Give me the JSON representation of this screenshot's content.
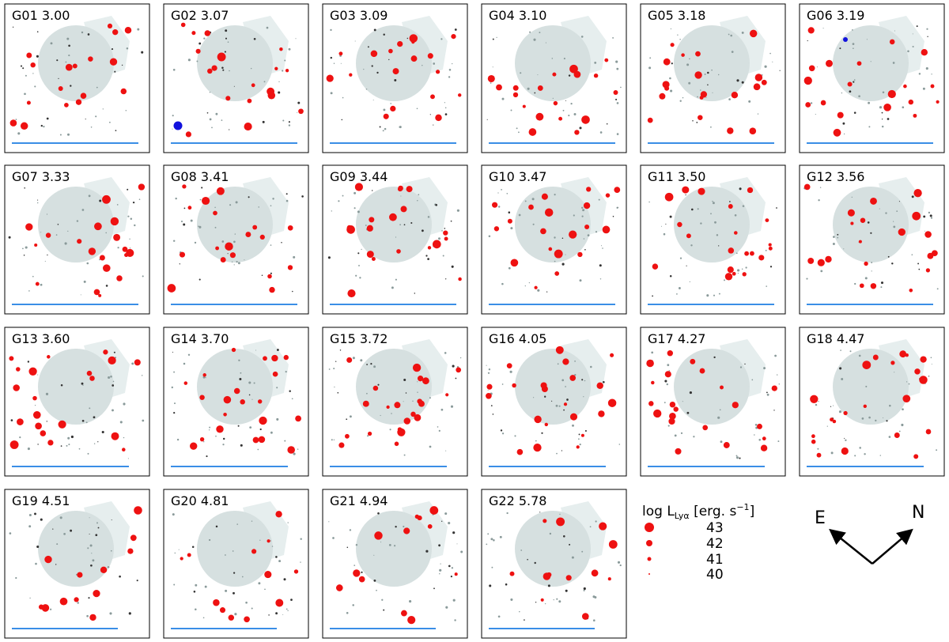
{
  "figure": {
    "panels": [
      {
        "id": "G01",
        "z": "3.00"
      },
      {
        "id": "G02",
        "z": "3.07"
      },
      {
        "id": "G03",
        "z": "3.09"
      },
      {
        "id": "G04",
        "z": "3.10"
      },
      {
        "id": "G05",
        "z": "3.18"
      },
      {
        "id": "G06",
        "z": "3.19"
      },
      {
        "id": "G07",
        "z": "3.33"
      },
      {
        "id": "G08",
        "z": "3.41"
      },
      {
        "id": "G09",
        "z": "3.44"
      },
      {
        "id": "G10",
        "z": "3.47"
      },
      {
        "id": "G11",
        "z": "3.50"
      },
      {
        "id": "G12",
        "z": "3.56"
      },
      {
        "id": "G13",
        "z": "3.60"
      },
      {
        "id": "G14",
        "z": "3.70"
      },
      {
        "id": "G15",
        "z": "3.72"
      },
      {
        "id": "G16",
        "z": "4.05"
      },
      {
        "id": "G17",
        "z": "4.27"
      },
      {
        "id": "G18",
        "z": "4.47"
      },
      {
        "id": "G19",
        "z": "4.51"
      },
      {
        "id": "G20",
        "z": "4.81"
      },
      {
        "id": "G21",
        "z": "4.94"
      },
      {
        "id": "G22",
        "z": "5.78"
      }
    ],
    "legend": {
      "title_prefix": "log L",
      "title_sub": "Lyα",
      "title_suffix_open": " [erg. s",
      "title_sup": "−1",
      "title_suffix_close": "]",
      "entries": [
        "43",
        "42",
        "41",
        "40"
      ]
    },
    "compass": {
      "left": "E",
      "right": "N"
    },
    "colors": {
      "marker_red": "#ee1111",
      "marker_blue": "#1111dd",
      "scale_bar": "#3a8ee6",
      "field_disk": "#d6e0e0",
      "field_wedge": "#e6eeee",
      "frame": "#000000"
    }
  }
}
